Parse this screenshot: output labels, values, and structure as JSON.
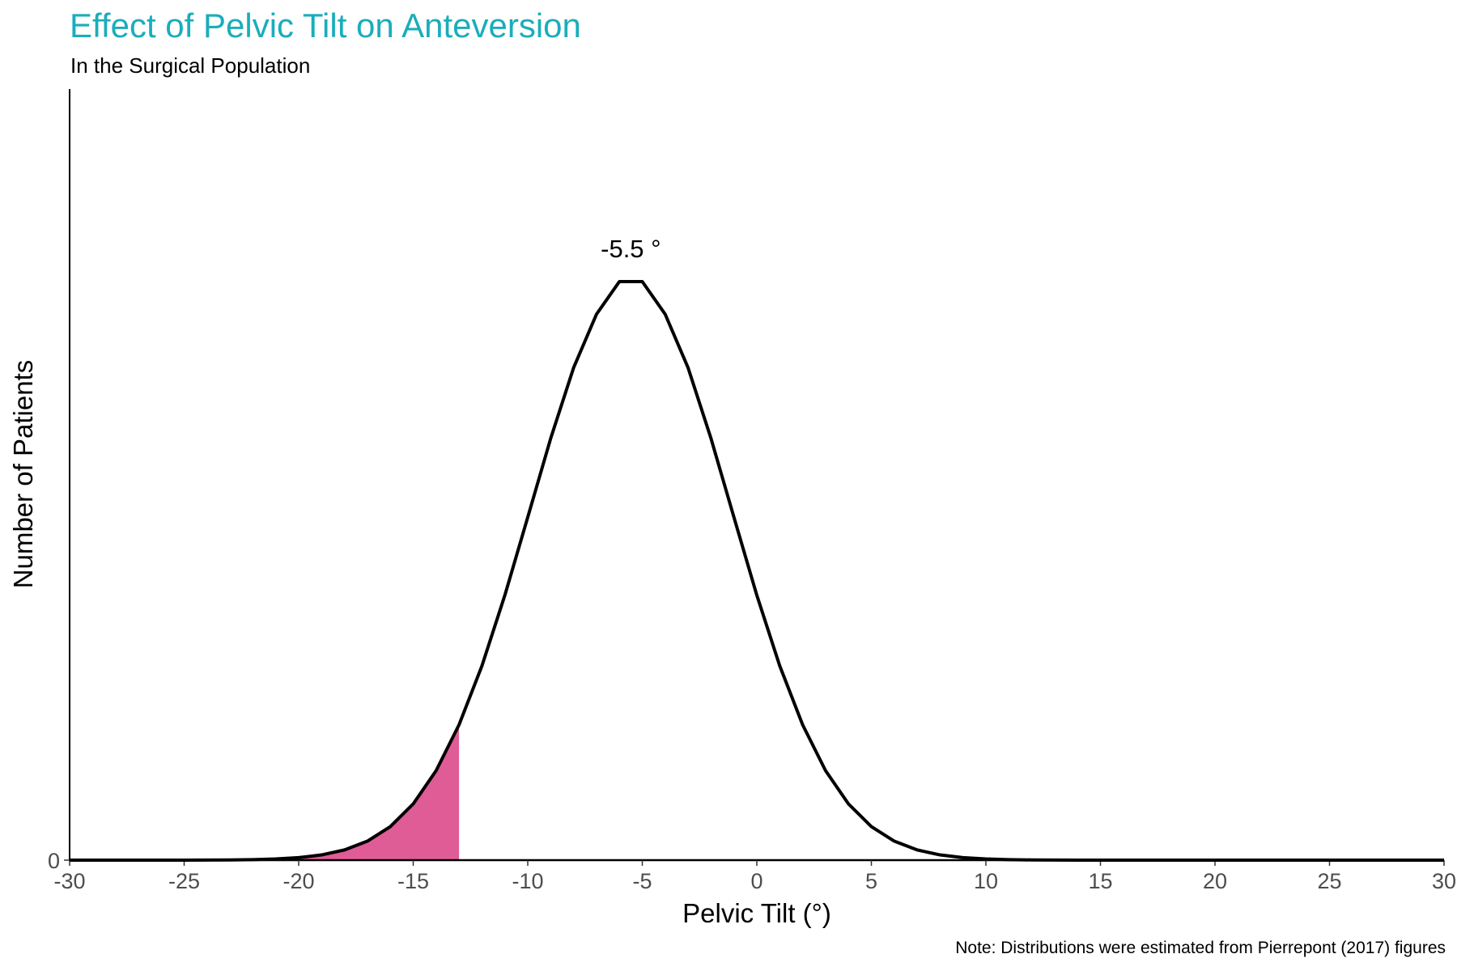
{
  "header": {
    "title": "Effect of Pelvic Tilt on Anteversion",
    "subtitle": "In the Surgical Population"
  },
  "axes": {
    "xlabel": "Pelvic Tilt (°)",
    "ylabel": "Number of Patients"
  },
  "note": "Note: Distributions were estimated from Pierrepont (2017) figures",
  "annotation": "-5.5 °",
  "colors": {
    "title": "#1aadbb",
    "curve": "#000000",
    "shade": "#e05c96"
  },
  "chart_data": {
    "type": "area",
    "title": "Effect of Pelvic Tilt on Anteversion",
    "subtitle": "In the Surgical Population",
    "xlabel": "Pelvic Tilt (°)",
    "ylabel": "Number of Patients",
    "xlim": [
      -30,
      30
    ],
    "x_ticks": [
      -30,
      -25,
      -20,
      -15,
      -10,
      -5,
      0,
      5,
      10,
      15,
      20,
      25,
      30
    ],
    "y_ticks": [
      0
    ],
    "distribution": {
      "kind": "normal",
      "mean": -5.5,
      "sd": 4.4
    },
    "shaded_region": {
      "from": -30,
      "to": -13,
      "color": "#e05c96"
    },
    "annotations": [
      {
        "x": -5.5,
        "label": "-5.5 °",
        "position": "above peak"
      }
    ],
    "grid": false,
    "legend": "none",
    "note": "Note: Distributions were estimated from Pierrepont (2017) figures"
  }
}
